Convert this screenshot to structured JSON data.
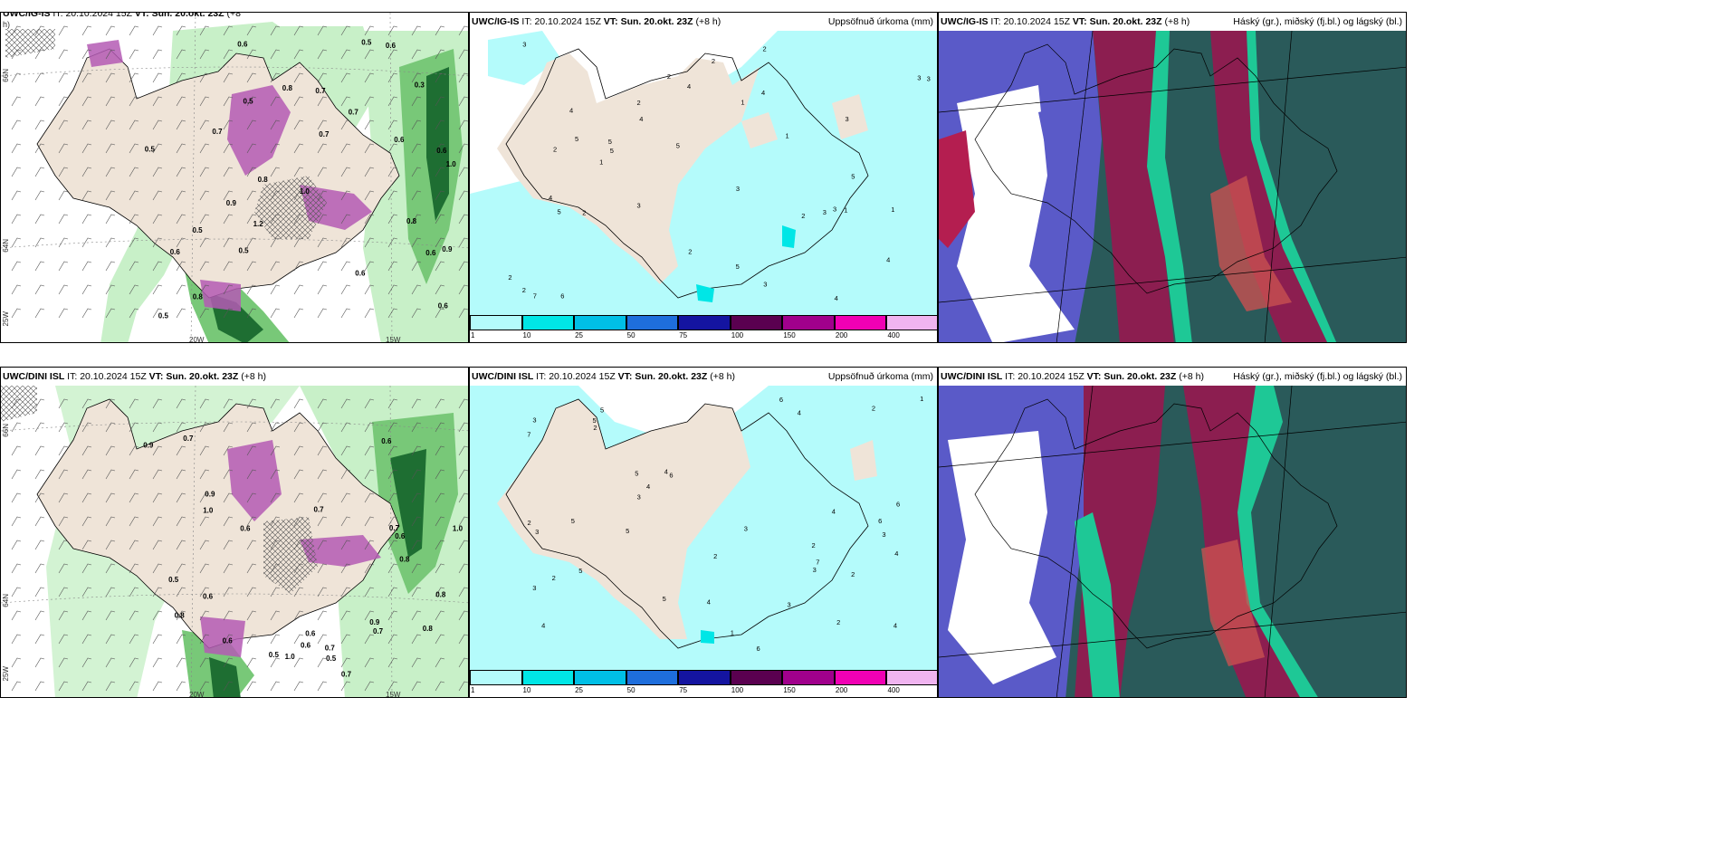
{
  "panels": {
    "top_left": {
      "title_model": "UWC/IG-IS",
      "title_it_label": "IT:",
      "title_it": "20.10.2024 15Z",
      "title_vt_label": "VT:",
      "title_vt": "Sun. 20.okt. 23Z",
      "title_lead": "(+8",
      "title_lead_wrap": "h)"
    },
    "top_mid": {
      "title_model": "UWC/IG-IS",
      "title_it_label": "IT:",
      "title_it": "20.10.2024 15Z",
      "title_vt_label": "VT:",
      "title_vt": "Sun. 20.okt. 23Z",
      "title_lead": "(+8 h)",
      "right_title": "Uppsöfnuð úrkoma (mm)"
    },
    "top_right": {
      "title_model": "UWC/IG-IS",
      "title_it_label": "IT:",
      "title_it": "20.10.2024 15Z",
      "title_vt_label": "VT:",
      "title_vt": "Sun. 20.okt. 23Z",
      "title_lead": "(+8 h)",
      "right_title": "Háský (gr.), miðský (fj.bl.) og lágský (bl.)"
    },
    "bot_left": {
      "title_model": "UWC/DINI ISL",
      "title_it_label": "IT:",
      "title_it": "20.10.2024 15Z",
      "title_vt_label": "VT:",
      "title_vt": "Sun. 20.okt. 23Z",
      "title_lead": "(+8 h)"
    },
    "bot_mid": {
      "title_model": "UWC/DINI ISL",
      "title_it_label": "IT:",
      "title_it": "20.10.2024 15Z",
      "title_vt_label": "VT:",
      "title_vt": "Sun. 20.okt. 23Z",
      "title_lead": "(+8 h)",
      "right_title": "Uppsöfnuð úrkoma (mm)"
    },
    "bot_right": {
      "title_model": "UWC/DINI ISL",
      "title_it_label": "IT:",
      "title_it": "20.10.2024 15Z",
      "title_vt_label": "VT:",
      "title_vt": "Sun. 20.okt. 23Z",
      "title_lead": "(+8 h)",
      "right_title": "Háský (gr.), miðský (fj.bl.) og lágský (bl.)"
    }
  },
  "axes": {
    "lat_66": "66N",
    "lat_64": "64N",
    "lon_25w": "25W",
    "lon_20w": "20W",
    "lon_15w": "15W"
  },
  "colorbar": {
    "labels": [
      "1",
      "10",
      "25",
      "50",
      "75",
      "100",
      "150",
      "200",
      "400"
    ],
    "colors": [
      "#b4fbfb",
      "#00e6e6",
      "#00bfe6",
      "#1e6edc",
      "#1414a0",
      "#5a0050",
      "#a0008c",
      "#f000b4",
      "#f0b4f0"
    ]
  },
  "colors": {
    "land": "#efe4d8",
    "sea": "#ffffff",
    "precip_light": "#c8f0c8",
    "precip_mid": "#78c878",
    "precip_dark": "#1e6e32",
    "snow": "#b45ab4",
    "acc_low": "#b4fbfb",
    "cloud_high": "#2a5a5a",
    "cloud_mid": "#5a5ac8",
    "cloud_low": "#8c1e50"
  },
  "labels": {
    "tl": [
      "0.5",
      "0.6",
      "0.7",
      "1.0",
      "0.8",
      "0.9",
      "1.2",
      "0.5",
      "0.6",
      "0.3",
      "0.7",
      "0.8",
      "0.6",
      "0.5",
      "0.6",
      "1.0",
      "0.9",
      "0.5",
      "0.6",
      "0.8",
      "0.6",
      "0.7",
      "0.8",
      "0.5",
      "0.7",
      "0.6",
      "0.5",
      "0.6"
    ],
    "bl": [
      "0.5",
      "0.6",
      "0.7",
      "0.9",
      "1.0",
      "0.8",
      "0.6",
      "0.5",
      "0.7",
      "0.9",
      "0.6",
      "0.8",
      "1.0",
      "0.7",
      "0.6",
      "0.5",
      "0.9",
      "0.7",
      "0.8",
      "0.6",
      "0.7",
      "0.8",
      "1.0",
      "0.6",
      "0.7",
      "0.6"
    ],
    "tm": [
      "1",
      "2",
      "3",
      "4",
      "5",
      "2",
      "3",
      "4",
      "5",
      "1",
      "2",
      "3",
      "4",
      "5",
      "2",
      "3",
      "4",
      "5",
      "6",
      "2",
      "3",
      "4",
      "5",
      "2",
      "3",
      "1",
      "1",
      "2",
      "3",
      "2",
      "5",
      "4",
      "3",
      "2",
      "1",
      "7",
      "5",
      "3",
      "4",
      "2"
    ],
    "bm": [
      "2",
      "3",
      "4",
      "5",
      "6",
      "2",
      "3",
      "4",
      "5",
      "6",
      "7",
      "2",
      "3",
      "4",
      "5",
      "6",
      "2",
      "3",
      "4",
      "5",
      "1",
      "2",
      "3",
      "4",
      "6",
      "5",
      "7",
      "3",
      "2",
      "4",
      "1",
      "3",
      "4",
      "5",
      "6",
      "2",
      "3",
      "5",
      "4",
      "2"
    ]
  }
}
